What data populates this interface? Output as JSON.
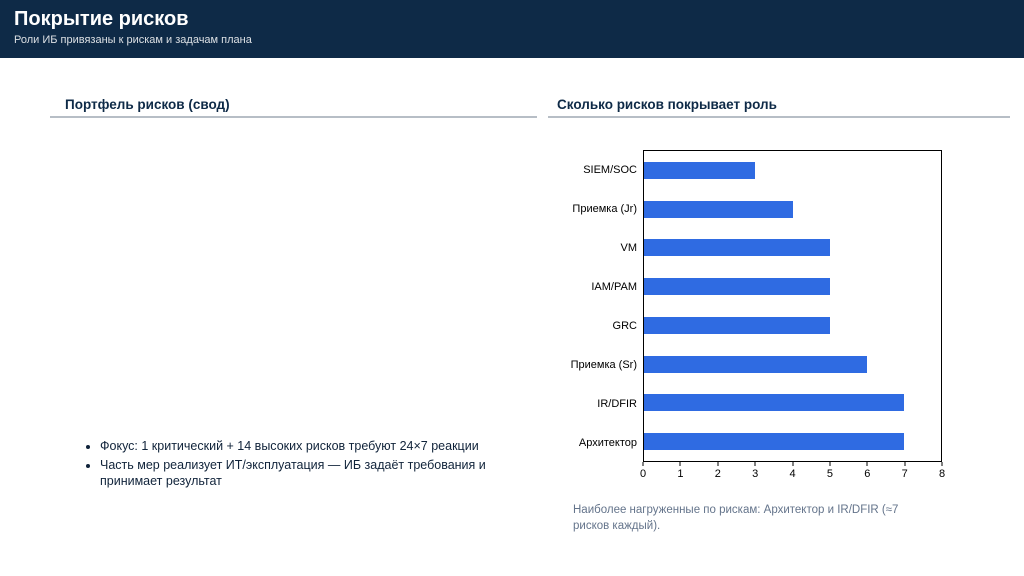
{
  "header": {
    "title": "Покрытие рисков",
    "subtitle": "Роли ИБ привязаны к рискам и задачам плана",
    "background_color": "#0e2a47"
  },
  "left": {
    "heading": "Портфель рисков (свод)",
    "bullets": [
      "Фокус: 1 критический + 14 высоких рисков требуют 24×7 реакции",
      "Часть мер реализует ИТ/эксплуатация — ИБ задаёт требования и принимает результат"
    ]
  },
  "right": {
    "heading": "Сколько рисков покрывает роль",
    "caption": "Наиболее нагруженные по рискам: Архитектор и IR/DFIR (≈7 рисков каждый)."
  },
  "chart_data": {
    "type": "bar",
    "orientation": "horizontal",
    "title": "",
    "categories": [
      "SIEM/SOC",
      "Приемка (Jr)",
      "VM",
      "IAM/PAM",
      "GRC",
      "Приемка (Sr)",
      "IR/DFIR",
      "Архитектор"
    ],
    "values": [
      3,
      4,
      5,
      5,
      5,
      6,
      7,
      7
    ],
    "xlabel": "",
    "ylabel": "",
    "xlim": [
      0,
      8
    ],
    "xticks": [
      0,
      1,
      2,
      3,
      4,
      5,
      6,
      7,
      8
    ],
    "grid": false,
    "legend": false,
    "bar_color": "#2f6be2"
  }
}
